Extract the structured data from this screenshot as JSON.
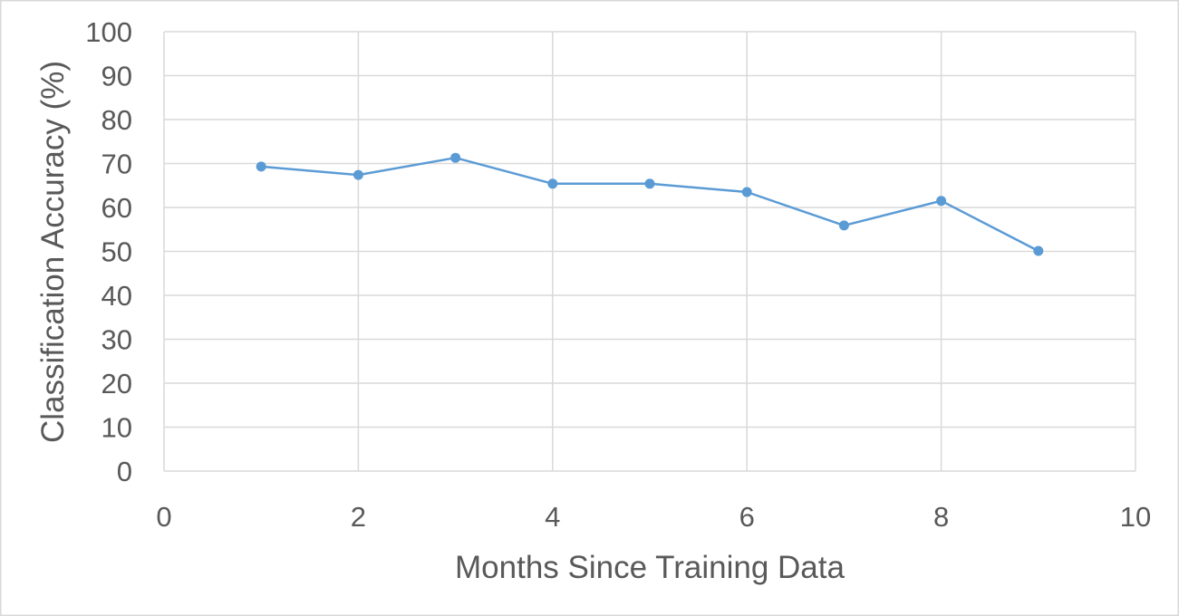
{
  "chart_data": {
    "type": "scatter",
    "title": "",
    "xlabel": "Months Since Training Data",
    "ylabel": "Classification Accuracy (%)",
    "xlim": [
      0,
      10
    ],
    "ylim": [
      0,
      100
    ],
    "xticks": [
      0,
      2,
      4,
      6,
      8,
      10
    ],
    "yticks": [
      0,
      10,
      20,
      30,
      40,
      50,
      60,
      70,
      80,
      90,
      100
    ],
    "grid": true,
    "legend": "none",
    "series": [
      {
        "color": "#5b9bd5",
        "x": [
          1,
          2,
          3,
          4,
          5,
          6,
          7,
          8,
          9
        ],
        "y": [
          69.3,
          67.4,
          71.3,
          65.4,
          65.4,
          63.5,
          55.9,
          61.5,
          50.1
        ]
      }
    ]
  }
}
